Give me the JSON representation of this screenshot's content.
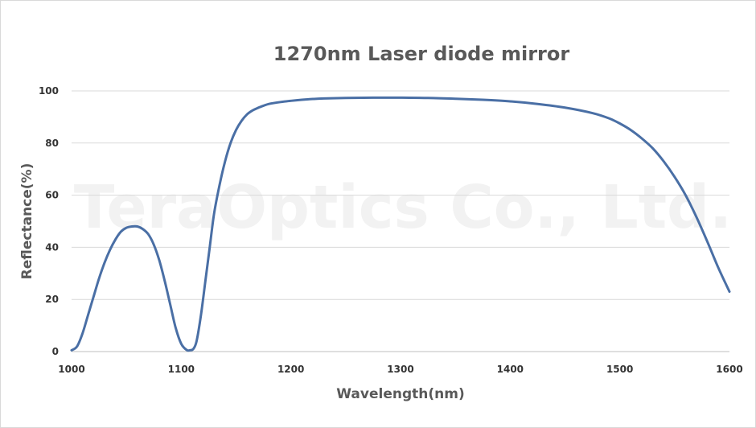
{
  "watermark": "TeraOptics Co., Ltd.",
  "chart_data": {
    "type": "line",
    "title": "1270nm Laser diode mirror",
    "xlabel": "Wavelength(nm)",
    "ylabel": "Reflectance(%)",
    "xlim": [
      1000,
      1600
    ],
    "ylim": [
      0,
      100
    ],
    "xticks": [
      1000,
      1100,
      1200,
      1300,
      1400,
      1500,
      1600
    ],
    "yticks": [
      0,
      20,
      40,
      60,
      80,
      100
    ],
    "grid": "horizontal",
    "legend": "none",
    "line_color": "#4a6fa5",
    "series": [
      {
        "x": [
          1000,
          1005,
          1010,
          1015,
          1020,
          1025,
          1030,
          1035,
          1040,
          1045,
          1050,
          1055,
          1060,
          1065,
          1070,
          1075,
          1080,
          1085,
          1090,
          1095,
          1100,
          1105,
          1108,
          1111,
          1114,
          1118,
          1122,
          1126,
          1130,
          1135,
          1140,
          1145,
          1150,
          1155,
          1160,
          1165,
          1170,
          1175,
          1180,
          1190,
          1200,
          1210,
          1220,
          1230,
          1250,
          1275,
          1300,
          1325,
          1350,
          1375,
          1400,
          1425,
          1450,
          1475,
          1490,
          1500,
          1510,
          1520,
          1530,
          1540,
          1550,
          1560,
          1570,
          1580,
          1590,
          1600
        ],
        "y": [
          0.5,
          2,
          7,
          14,
          21,
          28,
          34,
          39,
          43,
          46,
          47.5,
          48,
          48,
          47,
          45,
          41,
          35,
          27,
          18,
          9,
          3,
          0.6,
          0.5,
          1,
          4,
          14,
          27,
          40,
          53,
          64,
          73,
          80,
          85,
          88.5,
          91,
          92.5,
          93.5,
          94.3,
          95,
          95.7,
          96.2,
          96.6,
          96.9,
          97.1,
          97.3,
          97.4,
          97.4,
          97.3,
          97,
          96.6,
          96,
          95,
          93.6,
          91.5,
          89.5,
          87.5,
          85,
          81.8,
          78,
          73,
          67,
          60,
          51.5,
          42,
          32,
          23
        ]
      }
    ]
  }
}
